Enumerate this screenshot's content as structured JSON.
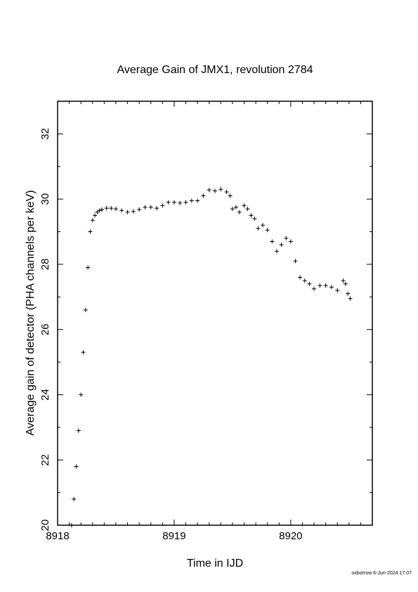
{
  "chart_data": {
    "type": "scatter",
    "title": "Average Gain of JMX1, revolution 2784",
    "xlabel": "Time in IJD",
    "ylabel": "Average gain of detector (PHA channels per keV)",
    "xlim": [
      8918,
      8920.7
    ],
    "ylim": [
      20,
      33
    ],
    "x_ticks": [
      8918,
      8919,
      8920
    ],
    "y_ticks": [
      20,
      22,
      24,
      26,
      28,
      30,
      32
    ],
    "x_tick_labels": [
      "8918",
      "8919",
      "8920"
    ],
    "y_tick_labels": [
      "20",
      "22",
      "24",
      "26",
      "28",
      "30",
      "32"
    ],
    "marker": "+",
    "grid": false,
    "legend": "none",
    "series": [
      {
        "x": [
          8918.12,
          8918.14,
          8918.16,
          8918.18,
          8918.2,
          8918.22,
          8918.24,
          8918.26,
          8918.28,
          8918.3,
          8918.32,
          8918.34,
          8918.36,
          8918.38,
          8918.42,
          8918.46,
          8918.5,
          8918.55,
          8918.6,
          8918.65,
          8918.7,
          8918.75,
          8918.8,
          8918.85,
          8918.9,
          8918.95,
          8919.0,
          8919.05,
          8919.1,
          8919.15,
          8919.2,
          8919.25,
          8919.3,
          8919.35,
          8919.4,
          8919.45,
          8919.48,
          8919.5,
          8919.53,
          8919.56,
          8919.6,
          8919.63,
          8919.66,
          8919.69,
          8919.72,
          8919.76,
          8919.8,
          8919.84,
          8919.88,
          8919.92,
          8919.96,
          8920.0,
          8920.04,
          8920.08,
          8920.12,
          8920.16,
          8920.2,
          8920.25,
          8920.3,
          8920.35,
          8920.4,
          8920.45,
          8920.47,
          8920.49,
          8920.51
        ],
        "y": [
          20.0,
          20.8,
          21.8,
          22.9,
          24.0,
          25.3,
          26.6,
          27.9,
          29.0,
          29.35,
          29.5,
          29.6,
          29.65,
          29.68,
          29.72,
          29.72,
          29.7,
          29.65,
          29.6,
          29.62,
          29.68,
          29.75,
          29.75,
          29.72,
          29.8,
          29.9,
          29.9,
          29.88,
          29.9,
          29.95,
          29.95,
          30.1,
          30.28,
          30.25,
          30.3,
          30.22,
          30.1,
          29.7,
          29.75,
          29.6,
          29.8,
          29.7,
          29.5,
          29.4,
          29.1,
          29.2,
          29.05,
          28.7,
          28.4,
          28.6,
          28.8,
          28.7,
          28.1,
          27.6,
          27.5,
          27.4,
          27.25,
          27.35,
          27.35,
          27.3,
          27.2,
          27.5,
          27.4,
          27.1,
          26.95
        ]
      }
    ]
  },
  "footer": {
    "stamp": "oxborrow  6-Jun-2024 17:07"
  }
}
